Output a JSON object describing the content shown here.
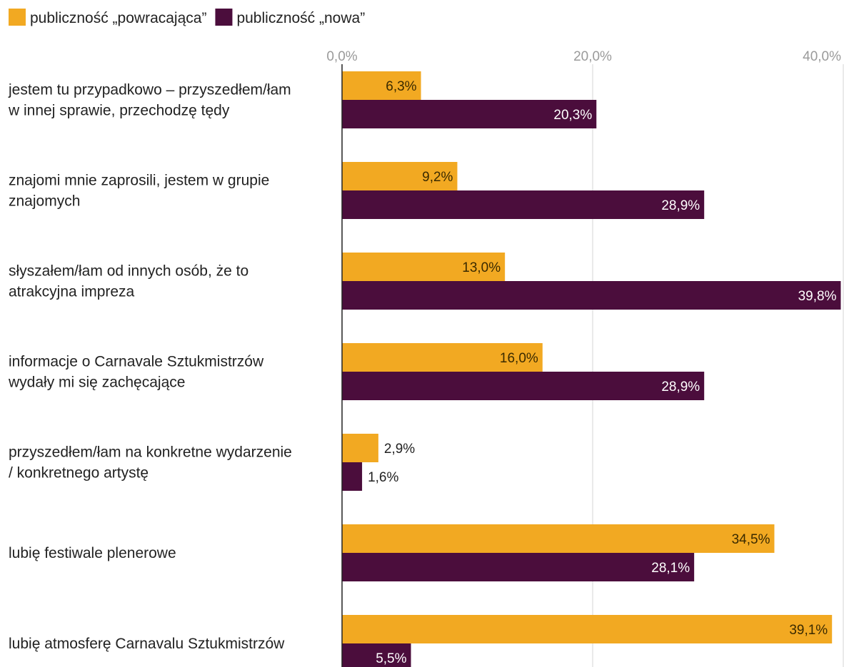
{
  "chart_data": {
    "type": "bar",
    "orientation": "horizontal",
    "title": "",
    "xlabel": "",
    "ylabel": "",
    "xlim": [
      0,
      40
    ],
    "ticks": [
      0,
      20,
      40
    ],
    "tick_labels": [
      "0,0%",
      "20,0%",
      "40,0%"
    ],
    "grid": true,
    "legend": "top-left",
    "categories": [
      [
        "jestem tu przypadkowo – przyszedłem/łam",
        "w innej sprawie, przechodzę tędy"
      ],
      [
        "znajomi mnie zaprosili, jestem w grupie",
        "znajomych"
      ],
      [
        "słyszałem/łam od innych osób, że to",
        "atrakcyjna impreza"
      ],
      [
        "informacje o Carnavale Sztukmistrzów",
        "wydały mi się zachęcające"
      ],
      [
        "przyszedłem/łam na konkretne wydarzenie",
        "/ konkretnego artystę"
      ],
      [
        "lubię festiwale plenerowe"
      ],
      [
        "lubię atmosferę Carnavalu Sztukmistrzów"
      ]
    ],
    "series": [
      {
        "name": "publiczność „powracająca”",
        "color": "#F2A922",
        "text_color": "#3a2a00",
        "values": [
          6.3,
          9.2,
          13.0,
          16.0,
          2.9,
          34.5,
          39.1
        ],
        "labels": [
          "6,3%",
          "9,2%",
          "13,0%",
          "16,0%",
          "2,9%",
          "34,5%",
          "39,1%"
        ]
      },
      {
        "name": "publiczność „nowa”",
        "color": "#4B0D3C",
        "text_color": "#ffffff",
        "values": [
          20.3,
          28.9,
          39.8,
          28.9,
          1.6,
          28.1,
          5.5
        ],
        "labels": [
          "20,3%",
          "28,9%",
          "39,8%",
          "28,9%",
          "1,6%",
          "28,1%",
          "5,5%"
        ]
      }
    ]
  }
}
